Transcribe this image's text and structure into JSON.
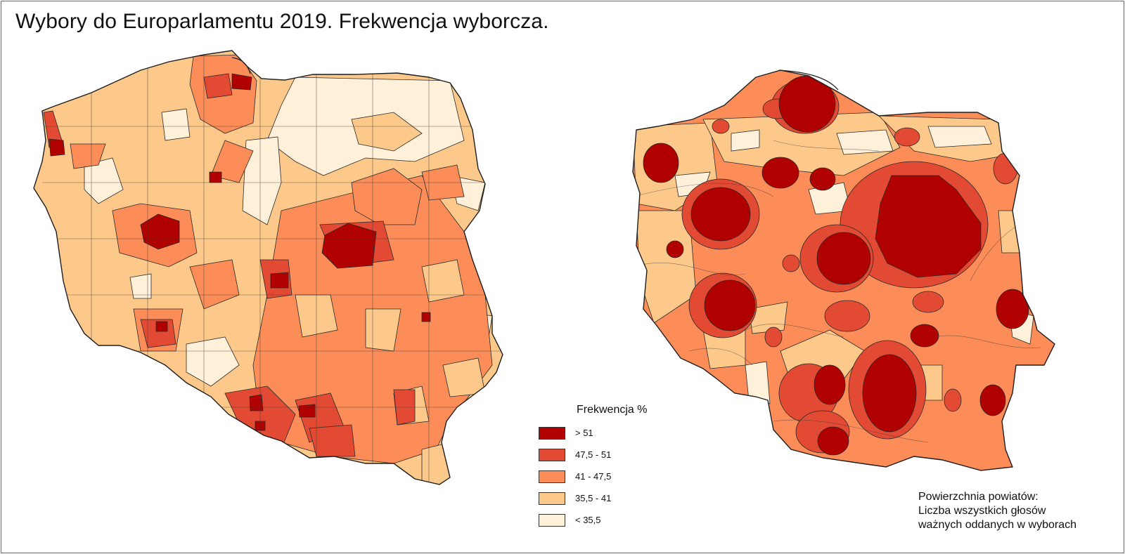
{
  "title": "Wybory do Europarlamentu 2019. Frekwencja wyborcza.",
  "colors": {
    "class_1": "#b10000",
    "class_2": "#e34a33",
    "class_3": "#fc8d59",
    "class_4": "#fdc98b",
    "class_5": "#fef0d9",
    "border": "#2b2b2b"
  },
  "legend": {
    "title": "Frekwencja %",
    "items": [
      {
        "label": "> 51",
        "color": "#b10000"
      },
      {
        "label": "47,5 - 51",
        "color": "#e34a33"
      },
      {
        "label": "41 - 47,5",
        "color": "#fc8d59"
      },
      {
        "label": "35,5 - 41",
        "color": "#fdc98b"
      },
      {
        "label": "< 35,5",
        "color": "#fef0d9"
      }
    ]
  },
  "cartogram_note": {
    "line1": "Powierzchnia powiatów:",
    "line2": "Liczba wszystkich głosów",
    "line3": "ważnych oddanych w wyborach"
  }
}
